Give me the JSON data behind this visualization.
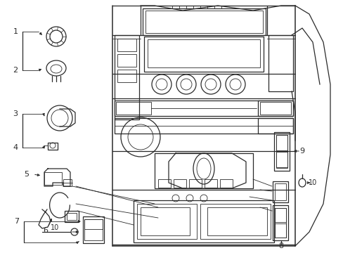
{
  "bg_color": "#ffffff",
  "line_color": "#2a2a2a",
  "figsize": [
    4.89,
    3.6
  ],
  "dpi": 100,
  "lw_main": 0.9,
  "lw_thin": 0.6,
  "lw_thick": 1.1
}
